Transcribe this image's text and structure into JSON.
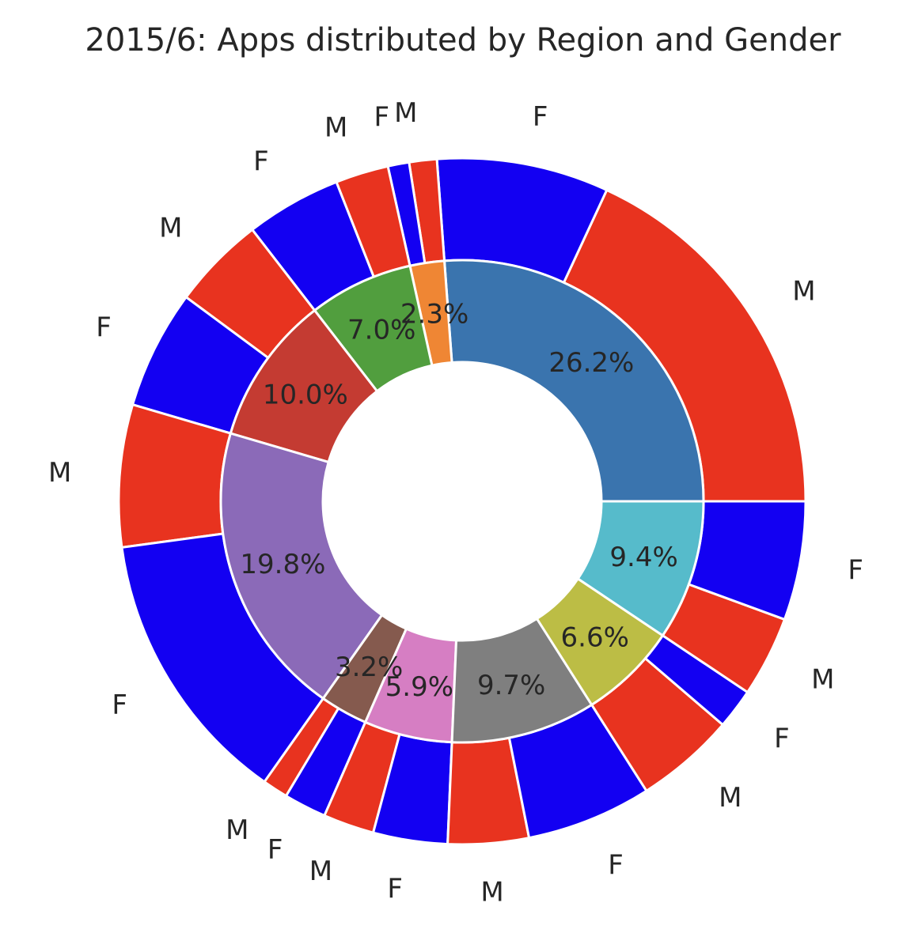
{
  "chart_data": {
    "type": "pie",
    "title": "2015/6: Apps distributed by Region and Gender",
    "inner_ring": {
      "slices": [
        {
          "value": 26.2,
          "label": "26.2%",
          "color": "#3a74ae"
        },
        {
          "value": 2.3,
          "label": "2.3%",
          "color": "#ef8634"
        },
        {
          "value": 7.0,
          "label": "7.0%",
          "color": "#519e3e"
        },
        {
          "value": 10.0,
          "label": "10.0%",
          "color": "#c43b32"
        },
        {
          "value": 19.8,
          "label": "19.8%",
          "color": "#8b6ab8"
        },
        {
          "value": 3.2,
          "label": "3.2%",
          "color": "#855a4e"
        },
        {
          "value": 5.9,
          "label": "5.9%",
          "color": "#d67ec3"
        },
        {
          "value": 9.7,
          "label": "9.7%",
          "color": "#7f7f7f"
        },
        {
          "value": 6.6,
          "label": "6.6%",
          "color": "#bcbd45"
        },
        {
          "value": 9.4,
          "label": "9.4%",
          "color": "#56bbcb"
        }
      ]
    },
    "outer_ring": {
      "colors": {
        "M": "#e8331f",
        "F": "#1300f2"
      },
      "slices": [
        {
          "label": "M",
          "value": 18.1
        },
        {
          "label": "F",
          "value": 8.1
        },
        {
          "label": "M",
          "value": 1.3
        },
        {
          "label": "F",
          "value": 1.0
        },
        {
          "label": "M",
          "value": 2.5
        },
        {
          "label": "F",
          "value": 4.5
        },
        {
          "label": "M",
          "value": 4.4
        },
        {
          "label": "F",
          "value": 5.6
        },
        {
          "label": "M",
          "value": 6.7
        },
        {
          "label": "F",
          "value": 13.1
        },
        {
          "label": "M",
          "value": 1.2
        },
        {
          "label": "F",
          "value": 2.0
        },
        {
          "label": "M",
          "value": 2.4
        },
        {
          "label": "F",
          "value": 3.5
        },
        {
          "label": "M",
          "value": 3.8
        },
        {
          "label": "F",
          "value": 5.9
        },
        {
          "label": "M",
          "value": 4.7
        },
        {
          "label": "F",
          "value": 1.9
        },
        {
          "label": "M",
          "value": 3.8
        },
        {
          "label": "F",
          "value": 5.6
        }
      ]
    },
    "start_angle_deg": 0,
    "direction": "counterclockwise"
  }
}
